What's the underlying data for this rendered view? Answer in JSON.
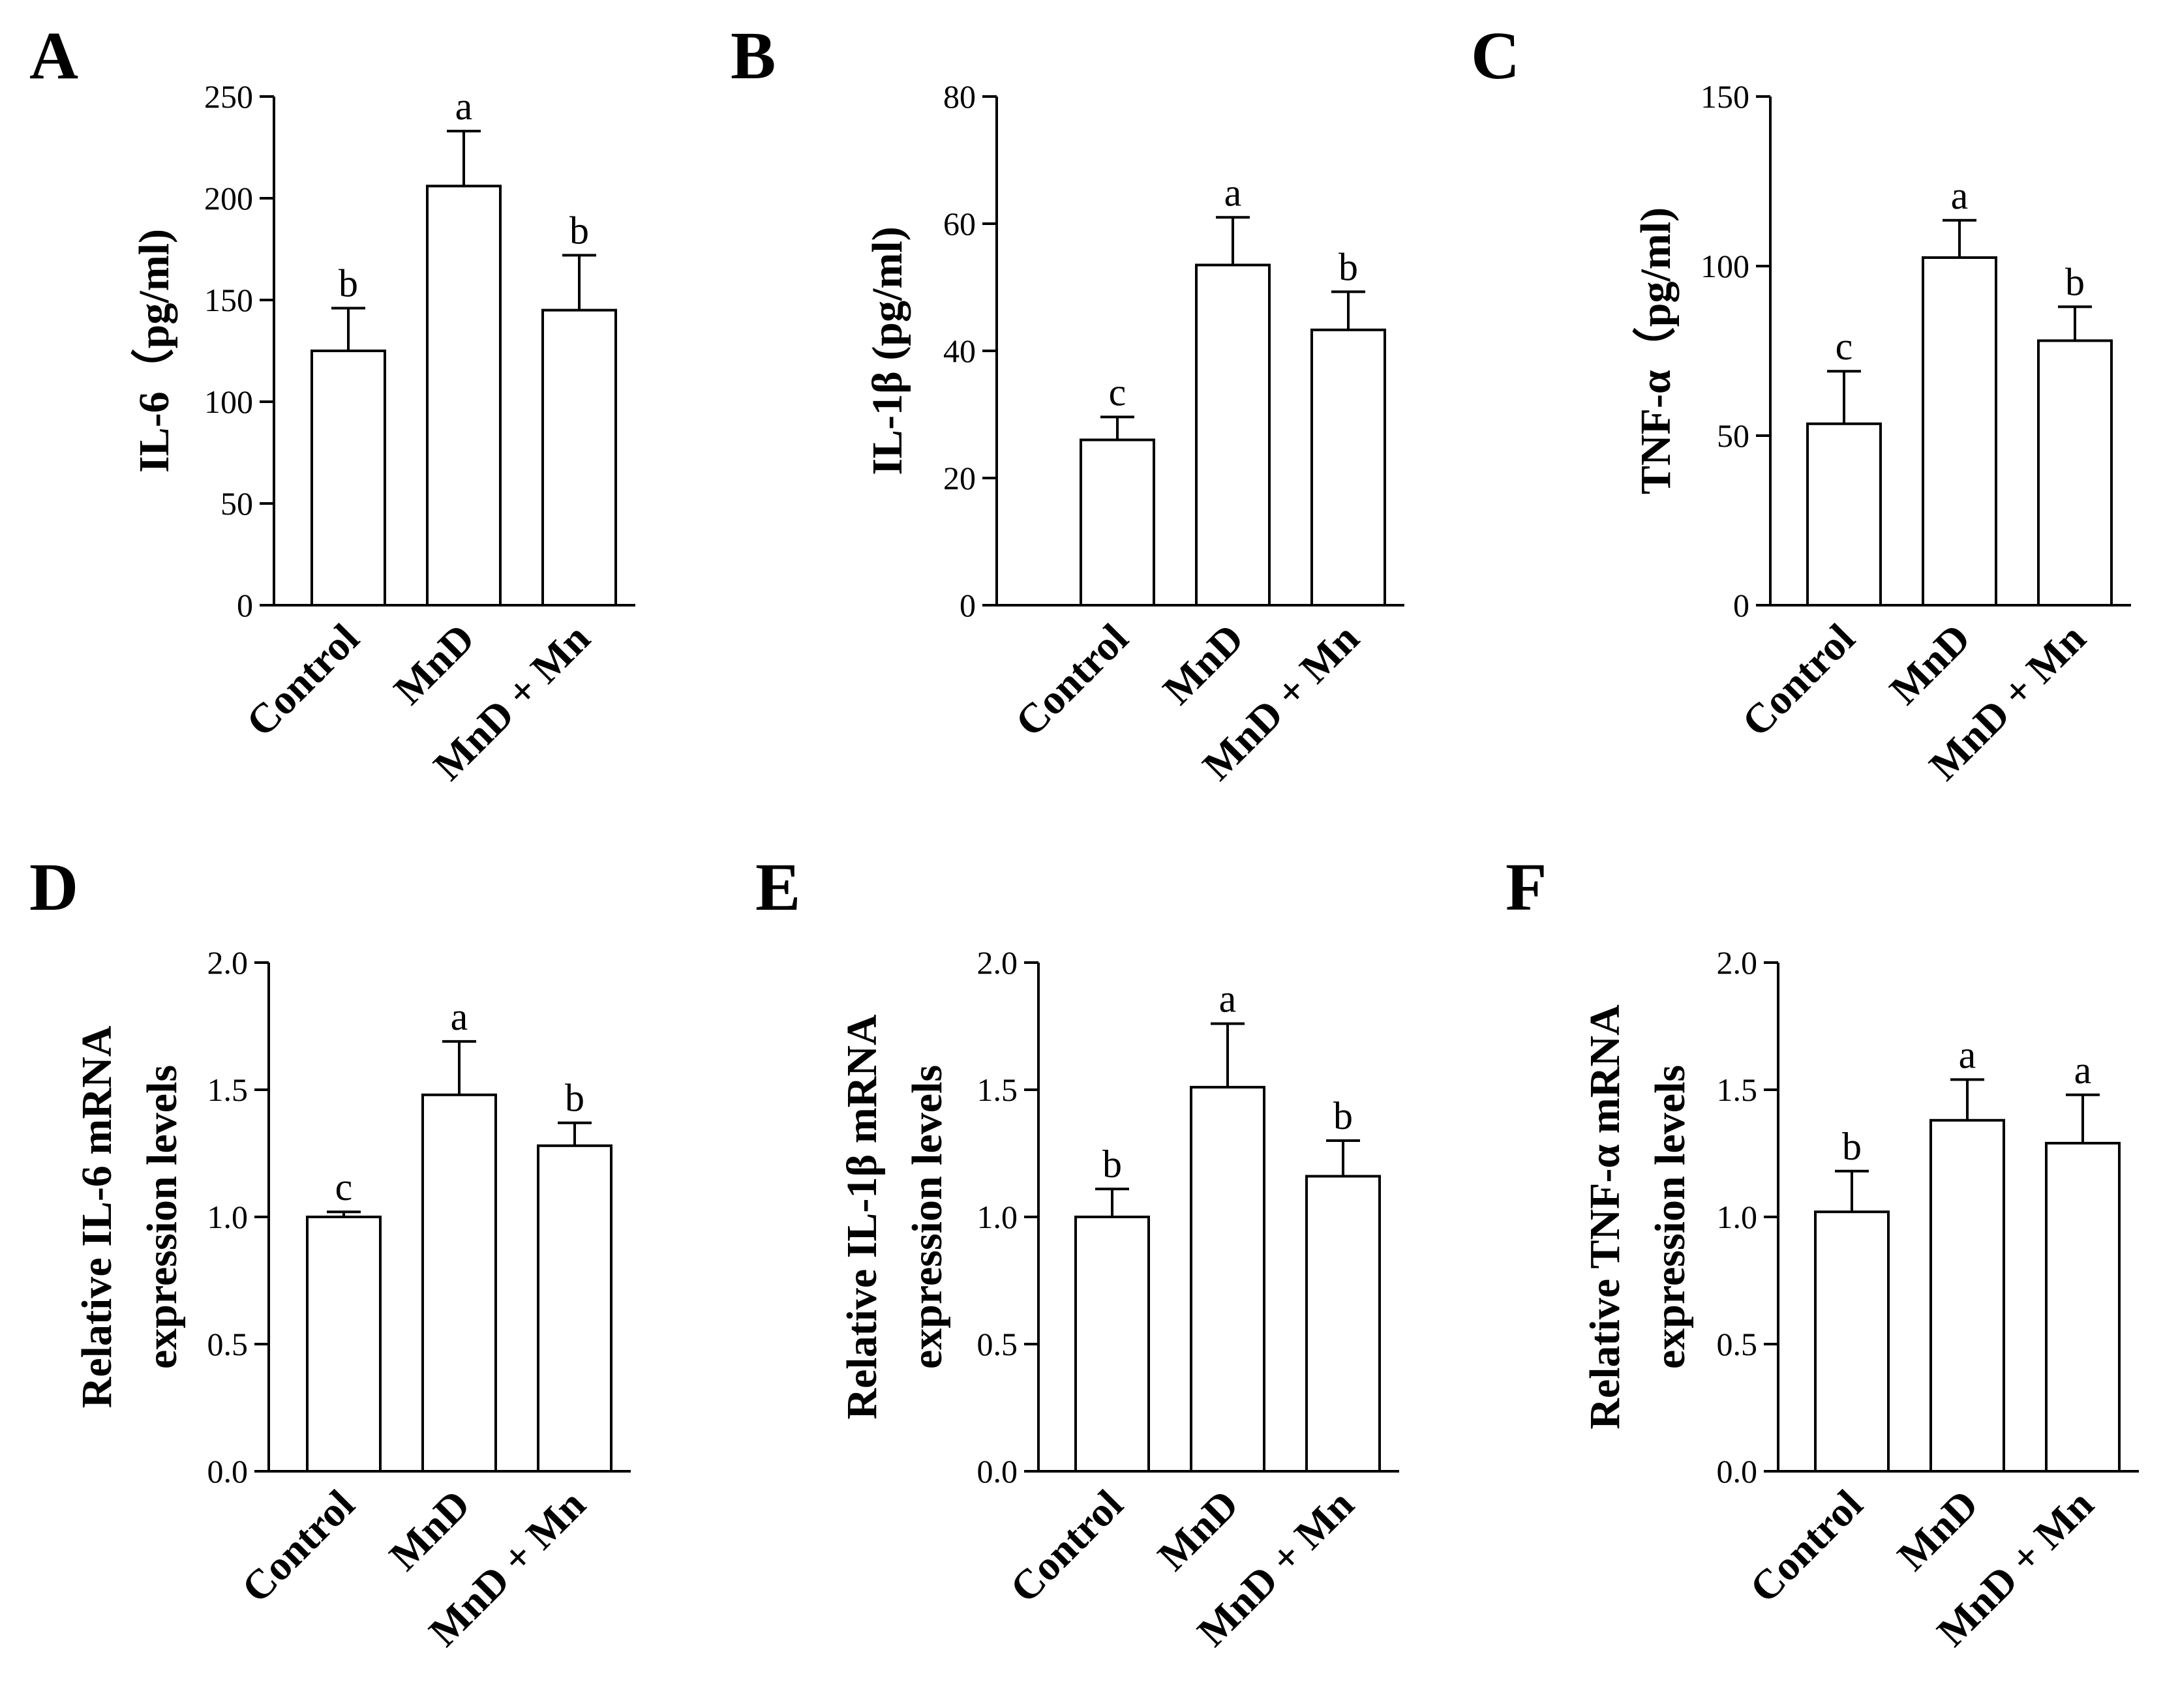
{
  "chart_data": [
    {
      "type": "bar",
      "panel": "A",
      "ylabel": "IL-6（pg/ml)",
      "ylim": [
        0,
        250
      ],
      "yticks": [
        "0",
        "50",
        "100",
        "150",
        "200",
        "250"
      ],
      "categories": [
        "Control",
        "MnD",
        "MnD + Mn"
      ],
      "values": [
        125,
        206,
        145
      ],
      "errors": [
        21,
        27,
        27
      ],
      "letters": [
        "b",
        "a",
        "b"
      ]
    },
    {
      "type": "bar",
      "panel": "B",
      "ylabel": "IL-1β (pg/ml)",
      "ylim": [
        0,
        80
      ],
      "yticks": [
        "0",
        "20",
        "40",
        "60",
        "80"
      ],
      "categories": [
        "Control",
        "MnD",
        "MnD + Mn"
      ],
      "values": [
        26,
        53.5,
        43.3
      ],
      "errors": [
        3.6,
        7.5,
        6.0
      ],
      "letters": [
        "c",
        "a",
        "b"
      ]
    },
    {
      "type": "bar",
      "panel": "C",
      "ylabel": "TNF-α（pg/ml)",
      "ylim": [
        0,
        150
      ],
      "yticks": [
        "0",
        "50",
        "100",
        "150"
      ],
      "categories": [
        "Control",
        "MnD",
        "MnD + Mn"
      ],
      "values": [
        53.5,
        102.5,
        78
      ],
      "errors": [
        15.5,
        11,
        10
      ],
      "letters": [
        "c",
        "a",
        "b"
      ]
    },
    {
      "type": "bar",
      "panel": "D",
      "ylabel": [
        "Relative IL-6 mRNA",
        "expression levels"
      ],
      "ylim": [
        0,
        2.0
      ],
      "yticks": [
        "0.0",
        "0.5",
        "1.0",
        "1.5",
        "2.0"
      ],
      "categories": [
        "Control",
        "MnD",
        "MnD + Mn"
      ],
      "values": [
        1.0,
        1.48,
        1.28
      ],
      "errors": [
        0.02,
        0.21,
        0.09
      ],
      "letters": [
        "c",
        "a",
        "b"
      ]
    },
    {
      "type": "bar",
      "panel": "E",
      "ylabel": [
        "Relative IL-1β mRNA",
        "expression levels"
      ],
      "ylim": [
        0,
        2.0
      ],
      "yticks": [
        "0.0",
        "0.5",
        "1.0",
        "1.5",
        "2.0"
      ],
      "categories": [
        "Control",
        "MnD",
        "MnD + Mn"
      ],
      "values": [
        1.0,
        1.51,
        1.16
      ],
      "errors": [
        0.11,
        0.25,
        0.14
      ],
      "letters": [
        "b",
        "a",
        "b"
      ]
    },
    {
      "type": "bar",
      "panel": "F",
      "ylabel": [
        "Relative TNF-α mRNA",
        "expression levels"
      ],
      "ylim": [
        0,
        2.0
      ],
      "yticks": [
        "0.0",
        "0.5",
        "1.0",
        "1.5",
        "2.0"
      ],
      "categories": [
        "Control",
        "MnD",
        "MnD + Mn"
      ],
      "values": [
        1.02,
        1.38,
        1.29
      ],
      "errors": [
        0.16,
        0.16,
        0.19
      ],
      "letters": [
        "b",
        "a",
        "a"
      ]
    }
  ]
}
